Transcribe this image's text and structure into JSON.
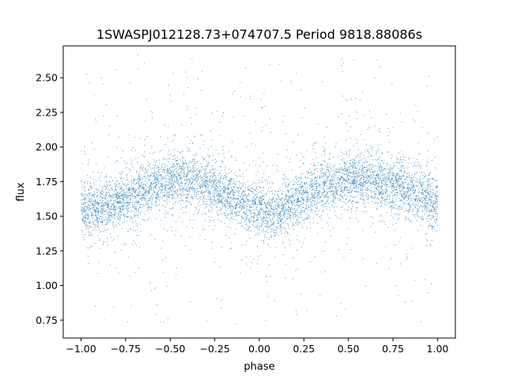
{
  "chart_data": {
    "type": "scatter",
    "title": "1SWASPJ012128.73+074707.5 Period 9818.88086s",
    "xlabel": "phase",
    "ylabel": "flux",
    "xlim": [
      -1.1,
      1.1
    ],
    "ylim": [
      0.62,
      2.73
    ],
    "grid": false,
    "marker_color": "#1f77b4",
    "xticks": [
      -1.0,
      -0.75,
      -0.5,
      -0.25,
      0.0,
      0.25,
      0.5,
      0.75,
      1.0
    ],
    "xtick_labels": [
      "−1.00",
      "−0.75",
      "−0.50",
      "−0.25",
      "0.00",
      "0.25",
      "0.50",
      "0.75",
      "1.00"
    ],
    "yticks": [
      0.75,
      1.0,
      1.25,
      1.5,
      1.75,
      2.0,
      2.25,
      2.5
    ],
    "ytick_labels": [
      "0.75",
      "1.00",
      "1.25",
      "1.50",
      "1.75",
      "2.00",
      "2.25",
      "2.50"
    ],
    "series": [
      {
        "x": [
          -1.0,
          -0.9,
          -0.8,
          -0.7,
          -0.6,
          -0.5,
          -0.4,
          -0.3,
          -0.2,
          -0.1,
          0.0,
          0.1,
          0.2,
          0.3,
          0.4,
          0.5,
          0.6,
          0.7,
          0.8,
          0.9,
          1.0
        ],
        "y": [
          1.57,
          1.56,
          1.6,
          1.66,
          1.72,
          1.76,
          1.77,
          1.73,
          1.67,
          1.6,
          1.55,
          1.54,
          1.6,
          1.67,
          1.73,
          1.76,
          1.77,
          1.75,
          1.71,
          1.65,
          1.6
        ]
      }
    ]
  }
}
